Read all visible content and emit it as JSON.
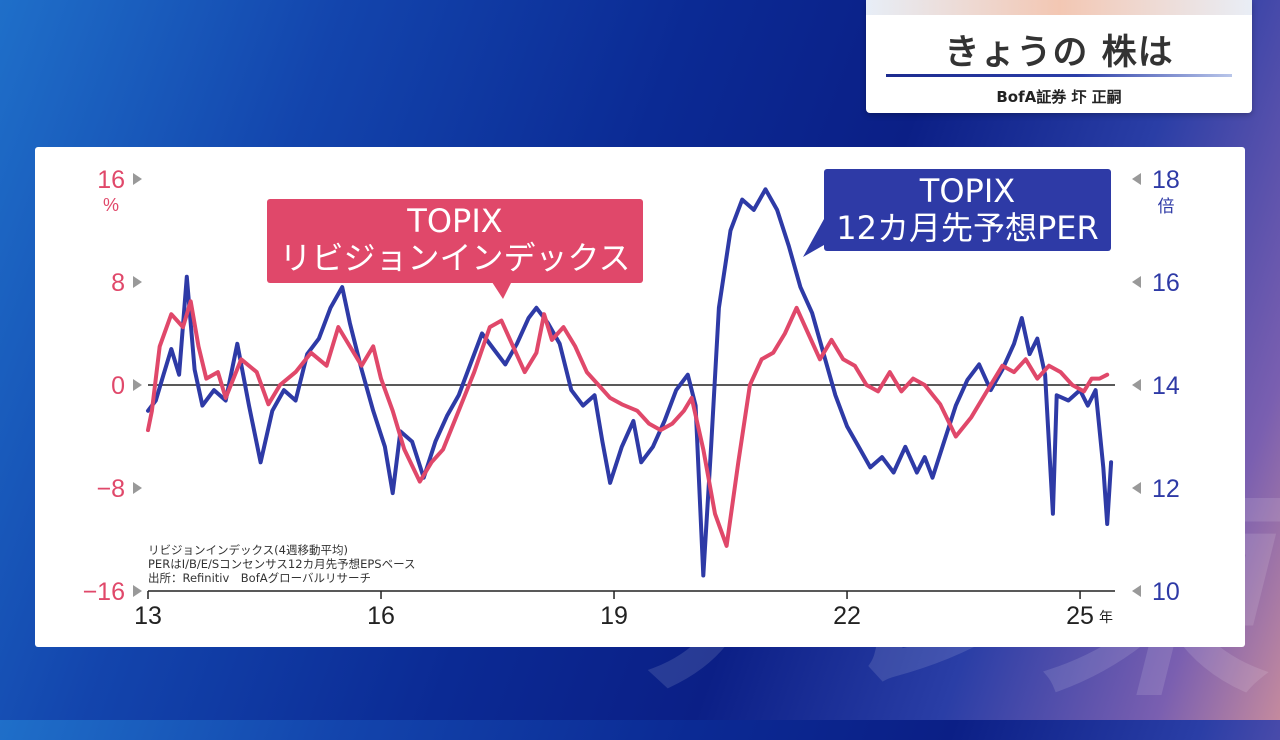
{
  "title_card": {
    "title": "きょうの 株は",
    "subtitle": "BofA証券 圷 正嗣"
  },
  "watermark": "テレ東",
  "labels": {
    "revision_series": [
      "TOPIX",
      "リビジョンインデックス"
    ],
    "per_series": [
      "TOPIX",
      "12カ月先予想PER"
    ]
  },
  "notes": [
    "リビジョンインデックス(4週移動平均)",
    "PERはI/B/E/Sコンセンサス12カ月先予想EPSベース",
    "出所：Refinitiv　BofAグローバルリサーチ"
  ],
  "colors": {
    "revision": "#e0486a",
    "per": "#2e3aa6",
    "left_axis": "#e0486a",
    "right_axis": "#2e3aa6"
  },
  "chart_data": {
    "type": "line",
    "x_ticks": [
      "13",
      "16",
      "19",
      "22",
      "25"
    ],
    "x_tick_values": [
      2013,
      2016,
      2019,
      2022,
      2025
    ],
    "x_unit": "年",
    "xlim": [
      2013,
      2025.45
    ],
    "left_axis": {
      "ticks": [
        "16",
        "8",
        "0",
        "−8",
        "−16"
      ],
      "tick_values": [
        16,
        8,
        0,
        -8,
        -16
      ],
      "unit": "%",
      "ylim": [
        -16,
        16
      ]
    },
    "right_axis": {
      "ticks": [
        "18",
        "16",
        "14",
        "12",
        "10"
      ],
      "tick_values": [
        18,
        16,
        14,
        12,
        10
      ],
      "unit": "倍",
      "ylim": [
        10,
        18
      ]
    },
    "series": [
      {
        "name": "TOPIX リビジョンインデックス",
        "axis": "left",
        "points": [
          [
            2013.0,
            -3.5
          ],
          [
            2013.05,
            -2
          ],
          [
            2013.15,
            3
          ],
          [
            2013.3,
            5.5
          ],
          [
            2013.45,
            4.5
          ],
          [
            2013.55,
            6.5
          ],
          [
            2013.65,
            3
          ],
          [
            2013.75,
            0.5
          ],
          [
            2013.9,
            1
          ],
          [
            2014.0,
            -1
          ],
          [
            2014.2,
            2
          ],
          [
            2014.4,
            1
          ],
          [
            2014.55,
            -1.5
          ],
          [
            2014.7,
            0
          ],
          [
            2014.9,
            1
          ],
          [
            2015.1,
            2.5
          ],
          [
            2015.3,
            1.5
          ],
          [
            2015.45,
            4.5
          ],
          [
            2015.6,
            3
          ],
          [
            2015.75,
            1.5
          ],
          [
            2015.9,
            3
          ],
          [
            2016.0,
            0.5
          ],
          [
            2016.15,
            -2
          ],
          [
            2016.3,
            -5
          ],
          [
            2016.5,
            -7.5
          ],
          [
            2016.65,
            -6
          ],
          [
            2016.8,
            -5
          ],
          [
            2017.0,
            -2
          ],
          [
            2017.2,
            1
          ],
          [
            2017.4,
            4.5
          ],
          [
            2017.55,
            5
          ],
          [
            2017.7,
            3
          ],
          [
            2017.85,
            1
          ],
          [
            2018.0,
            2.5
          ],
          [
            2018.1,
            5.5
          ],
          [
            2018.2,
            3.5
          ],
          [
            2018.35,
            4.5
          ],
          [
            2018.5,
            3
          ],
          [
            2018.65,
            1
          ],
          [
            2018.8,
            0
          ],
          [
            2018.95,
            -1
          ],
          [
            2019.1,
            -1.5
          ],
          [
            2019.3,
            -2
          ],
          [
            2019.45,
            -3
          ],
          [
            2019.6,
            -3.5
          ],
          [
            2019.75,
            -3
          ],
          [
            2019.9,
            -2
          ],
          [
            2020.0,
            -1
          ],
          [
            2020.15,
            -5
          ],
          [
            2020.3,
            -10
          ],
          [
            2020.45,
            -12.5
          ],
          [
            2020.6,
            -6
          ],
          [
            2020.75,
            0
          ],
          [
            2020.9,
            2
          ],
          [
            2021.05,
            2.5
          ],
          [
            2021.2,
            4
          ],
          [
            2021.35,
            6
          ],
          [
            2021.5,
            4
          ],
          [
            2021.65,
            2
          ],
          [
            2021.8,
            3.5
          ],
          [
            2021.95,
            2
          ],
          [
            2022.1,
            1.5
          ],
          [
            2022.25,
            0
          ],
          [
            2022.4,
            -0.5
          ],
          [
            2022.55,
            1
          ],
          [
            2022.7,
            -0.5
          ],
          [
            2022.85,
            0.5
          ],
          [
            2023.0,
            0
          ],
          [
            2023.2,
            -1.5
          ],
          [
            2023.4,
            -4
          ],
          [
            2023.6,
            -2.5
          ],
          [
            2023.8,
            -0.5
          ],
          [
            2024.0,
            1.5
          ],
          [
            2024.15,
            1
          ],
          [
            2024.3,
            2
          ],
          [
            2024.45,
            0.5
          ],
          [
            2024.6,
            1.5
          ],
          [
            2024.75,
            1
          ],
          [
            2024.9,
            0
          ],
          [
            2025.05,
            -0.5
          ],
          [
            2025.15,
            0.5
          ],
          [
            2025.25,
            0.5
          ],
          [
            2025.35,
            0.8
          ]
        ]
      },
      {
        "name": "TOPIX 12カ月先予想PER",
        "axis": "right",
        "points": [
          [
            2013.0,
            13.5
          ],
          [
            2013.1,
            13.7
          ],
          [
            2013.2,
            14.2
          ],
          [
            2013.3,
            14.7
          ],
          [
            2013.4,
            14.2
          ],
          [
            2013.5,
            16.1
          ],
          [
            2013.6,
            14.3
          ],
          [
            2013.7,
            13.6
          ],
          [
            2013.85,
            13.9
          ],
          [
            2014.0,
            13.7
          ],
          [
            2014.15,
            14.8
          ],
          [
            2014.3,
            13.6
          ],
          [
            2014.45,
            12.5
          ],
          [
            2014.6,
            13.5
          ],
          [
            2014.75,
            13.9
          ],
          [
            2014.9,
            13.7
          ],
          [
            2015.05,
            14.6
          ],
          [
            2015.2,
            14.9
          ],
          [
            2015.35,
            15.5
          ],
          [
            2015.5,
            15.9
          ],
          [
            2015.6,
            15.2
          ],
          [
            2015.75,
            14.3
          ],
          [
            2015.9,
            13.5
          ],
          [
            2016.05,
            12.8
          ],
          [
            2016.15,
            11.9
          ],
          [
            2016.25,
            13.1
          ],
          [
            2016.4,
            12.9
          ],
          [
            2016.55,
            12.2
          ],
          [
            2016.7,
            12.9
          ],
          [
            2016.85,
            13.4
          ],
          [
            2017.0,
            13.8
          ],
          [
            2017.15,
            14.4
          ],
          [
            2017.3,
            15.0
          ],
          [
            2017.45,
            14.7
          ],
          [
            2017.6,
            14.4
          ],
          [
            2017.75,
            14.8
          ],
          [
            2017.9,
            15.3
          ],
          [
            2018.0,
            15.5
          ],
          [
            2018.15,
            15.2
          ],
          [
            2018.3,
            14.8
          ],
          [
            2018.45,
            13.9
          ],
          [
            2018.6,
            13.6
          ],
          [
            2018.75,
            13.8
          ],
          [
            2018.85,
            12.9
          ],
          [
            2018.95,
            12.1
          ],
          [
            2019.1,
            12.8
          ],
          [
            2019.25,
            13.3
          ],
          [
            2019.35,
            12.5
          ],
          [
            2019.5,
            12.8
          ],
          [
            2019.65,
            13.3
          ],
          [
            2019.8,
            13.9
          ],
          [
            2019.95,
            14.2
          ],
          [
            2020.05,
            13.6
          ],
          [
            2020.15,
            10.3
          ],
          [
            2020.25,
            12.8
          ],
          [
            2020.35,
            15.5
          ],
          [
            2020.5,
            17.0
          ],
          [
            2020.65,
            17.6
          ],
          [
            2020.8,
            17.4
          ],
          [
            2020.95,
            17.8
          ],
          [
            2021.1,
            17.4
          ],
          [
            2021.25,
            16.7
          ],
          [
            2021.4,
            15.9
          ],
          [
            2021.55,
            15.4
          ],
          [
            2021.7,
            14.6
          ],
          [
            2021.85,
            13.8
          ],
          [
            2022.0,
            13.2
          ],
          [
            2022.15,
            12.8
          ],
          [
            2022.3,
            12.4
          ],
          [
            2022.45,
            12.6
          ],
          [
            2022.6,
            12.3
          ],
          [
            2022.75,
            12.8
          ],
          [
            2022.9,
            12.3
          ],
          [
            2023.0,
            12.6
          ],
          [
            2023.1,
            12.2
          ],
          [
            2023.25,
            12.9
          ],
          [
            2023.4,
            13.6
          ],
          [
            2023.55,
            14.1
          ],
          [
            2023.7,
            14.4
          ],
          [
            2023.85,
            13.9
          ],
          [
            2024.0,
            14.3
          ],
          [
            2024.15,
            14.8
          ],
          [
            2024.25,
            15.3
          ],
          [
            2024.35,
            14.6
          ],
          [
            2024.45,
            14.9
          ],
          [
            2024.55,
            14.2
          ],
          [
            2024.65,
            11.5
          ],
          [
            2024.7,
            13.8
          ],
          [
            2024.85,
            13.7
          ],
          [
            2025.0,
            13.9
          ],
          [
            2025.1,
            13.6
          ],
          [
            2025.2,
            13.9
          ],
          [
            2025.3,
            12.4
          ],
          [
            2025.35,
            11.3
          ],
          [
            2025.4,
            12.5
          ]
        ]
      }
    ]
  }
}
